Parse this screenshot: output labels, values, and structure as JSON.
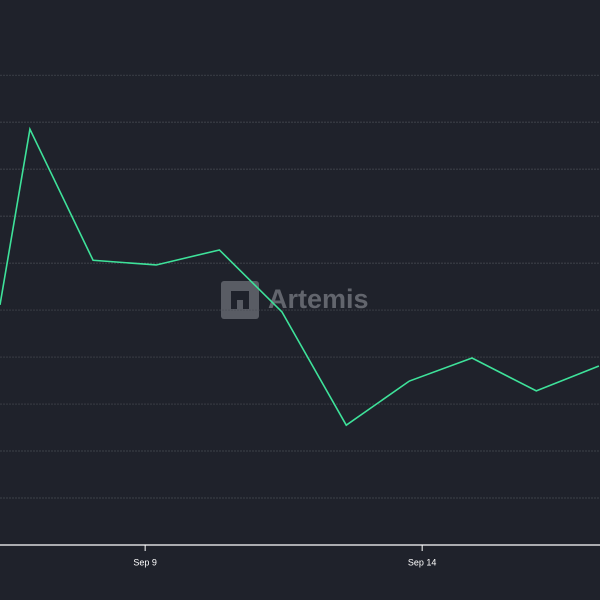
{
  "chart_data": {
    "type": "line",
    "watermark": "Artemis",
    "x": [
      6.38,
      6.92,
      8.06,
      9.2,
      10.34,
      11.47,
      12.63,
      13.77,
      14.9,
      16.06,
      17.19
    ],
    "series": [
      {
        "color": "#3ee29a",
        "values": [
          5.11,
          8.85,
          6.06,
          5.96,
          6.28,
          4.96,
          2.55,
          3.49,
          3.98,
          3.28,
          3.81
        ]
      }
    ],
    "xlim": [
      6.38,
      17.21
    ],
    "xticks": [
      {
        "value": 9,
        "label": "Sep 9"
      },
      {
        "value": 14,
        "label": "Sep 14"
      }
    ],
    "ylim": [
      0,
      11.6
    ],
    "yticks": [
      0,
      1,
      2,
      3,
      4,
      5,
      6,
      7,
      8,
      9,
      10
    ],
    "grid": true
  }
}
